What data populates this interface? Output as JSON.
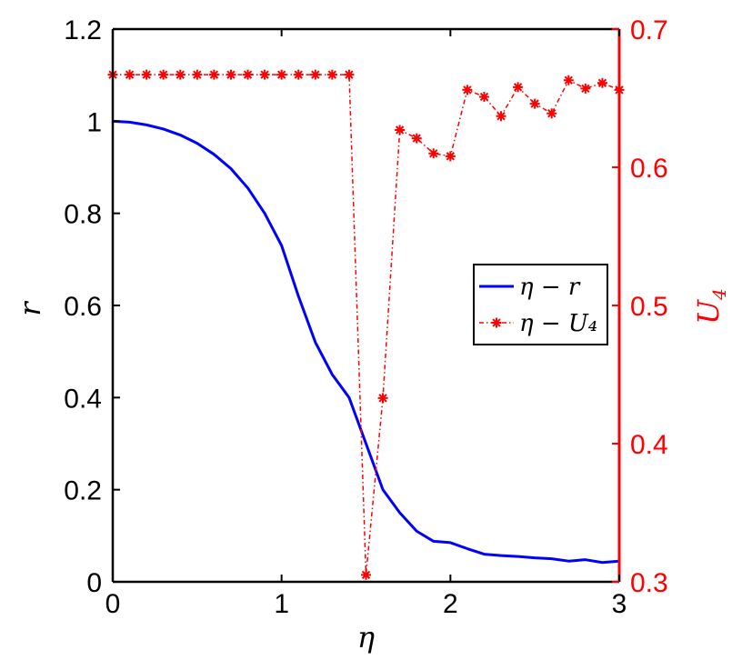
{
  "chart_data": {
    "type": "line",
    "xlabel": "η",
    "ylabel_left": "r",
    "ylabel_right": "U",
    "ylabel_right_subscript": "4",
    "xlim": [
      0,
      3
    ],
    "ylim_left": [
      0,
      1.2
    ],
    "ylim_right": [
      0.3,
      0.7
    ],
    "x_ticks": [
      "0",
      "1",
      "2",
      "3"
    ],
    "y_left_ticks": [
      "0",
      "0.2",
      "0.4",
      "0.6",
      "0.8",
      "1",
      "1.2"
    ],
    "y_right_ticks": [
      "0.3",
      "0.4",
      "0.5",
      "0.6",
      "0.7"
    ],
    "grid": false,
    "legend_position": "right",
    "colors": {
      "left_axis": "#000000",
      "right_axis": "#ff0000",
      "series_r": "#0000ff",
      "series_u4": "#ff0000"
    },
    "series": [
      {
        "name": "η − r",
        "axis": "left",
        "style": "solid",
        "x": [
          0,
          0.1,
          0.2,
          0.3,
          0.4,
          0.5,
          0.6,
          0.7,
          0.8,
          0.9,
          1.0,
          1.1,
          1.2,
          1.3,
          1.4,
          1.5,
          1.6,
          1.7,
          1.8,
          1.9,
          2.0,
          2.1,
          2.2,
          2.3,
          2.4,
          2.5,
          2.6,
          2.7,
          2.8,
          2.9,
          3.0
        ],
        "values": [
          1.0,
          0.998,
          0.992,
          0.983,
          0.97,
          0.952,
          0.928,
          0.897,
          0.855,
          0.8,
          0.73,
          0.62,
          0.52,
          0.45,
          0.4,
          0.3,
          0.2,
          0.15,
          0.11,
          0.088,
          0.085,
          0.072,
          0.06,
          0.057,
          0.055,
          0.052,
          0.05,
          0.045,
          0.048,
          0.042,
          0.045
        ]
      },
      {
        "name": "η − U₄",
        "axis": "right",
        "style": "dashed-star",
        "x": [
          0,
          0.1,
          0.2,
          0.3,
          0.4,
          0.5,
          0.6,
          0.7,
          0.8,
          0.9,
          1.0,
          1.1,
          1.2,
          1.3,
          1.4,
          1.5,
          1.6,
          1.7,
          1.8,
          1.9,
          2.0,
          2.1,
          2.2,
          2.3,
          2.4,
          2.5,
          2.6,
          2.7,
          2.8,
          2.9,
          3.0
        ],
        "values": [
          0.667,
          0.667,
          0.667,
          0.667,
          0.667,
          0.667,
          0.667,
          0.667,
          0.667,
          0.667,
          0.667,
          0.667,
          0.667,
          0.667,
          0.667,
          0.305,
          0.433,
          0.627,
          0.621,
          0.61,
          0.608,
          0.656,
          0.651,
          0.637,
          0.658,
          0.646,
          0.639,
          0.663,
          0.657,
          0.661,
          0.656
        ]
      }
    ]
  }
}
